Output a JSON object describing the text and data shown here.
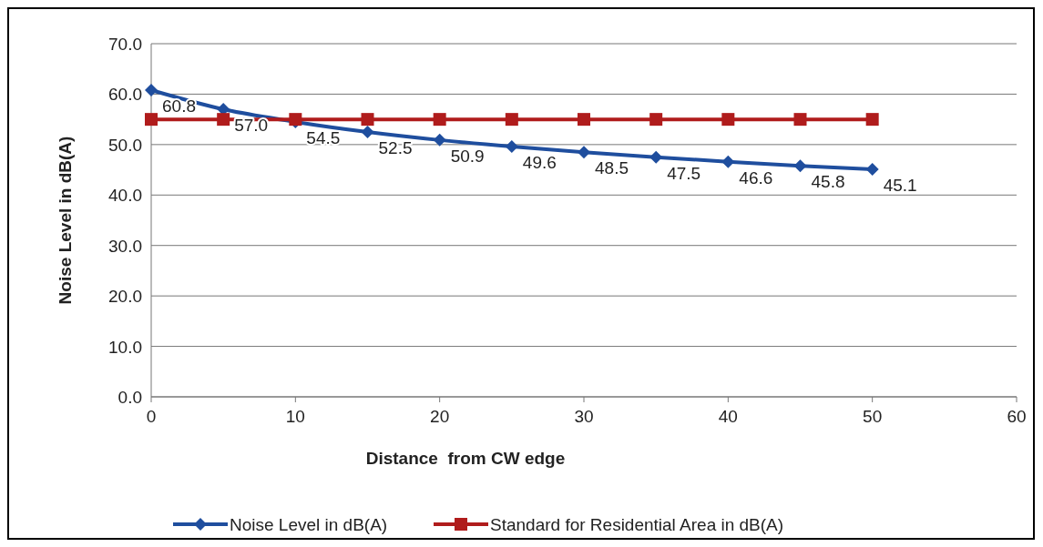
{
  "chart_data": {
    "type": "line",
    "xlabel": "Distance  from CW edge",
    "ylabel": "Noise Level in dB(A)",
    "x": [
      0,
      5,
      10,
      15,
      20,
      25,
      30,
      35,
      40,
      45,
      50
    ],
    "xlim": [
      0,
      60
    ],
    "xticks": [
      0,
      10,
      20,
      30,
      40,
      50,
      60
    ],
    "ylim": [
      0,
      70
    ],
    "yticks": [
      {
        "value": 0,
        "label": "0.0"
      },
      {
        "value": 10,
        "label": "10.0"
      },
      {
        "value": 20,
        "label": "20.0"
      },
      {
        "value": 30,
        "label": "30.0"
      },
      {
        "value": 40,
        "label": "40.0"
      },
      {
        "value": 50,
        "label": "50.0"
      },
      {
        "value": 60,
        "label": "60.0"
      },
      {
        "value": 70,
        "label": "70.0"
      }
    ],
    "grid": "y",
    "legend": "bottom",
    "series": [
      {
        "name": "Noise Level in dB(A)",
        "color": "#1f4e9e",
        "marker": "diamond",
        "values": [
          60.8,
          57.0,
          54.5,
          52.5,
          50.9,
          49.6,
          48.5,
          47.5,
          46.6,
          45.8,
          45.1
        ],
        "value_labels": [
          "60.8",
          "57.0",
          "54.5",
          "52.5",
          "50.9",
          "49.6",
          "48.5",
          "47.5",
          "46.6",
          "45.8",
          "45.1"
        ]
      },
      {
        "name": "Standard for Residential Area in dB(A)",
        "color": "#b01c1c",
        "marker": "square",
        "values": [
          55,
          55,
          55,
          55,
          55,
          55,
          55,
          55,
          55,
          55,
          55
        ]
      }
    ]
  }
}
